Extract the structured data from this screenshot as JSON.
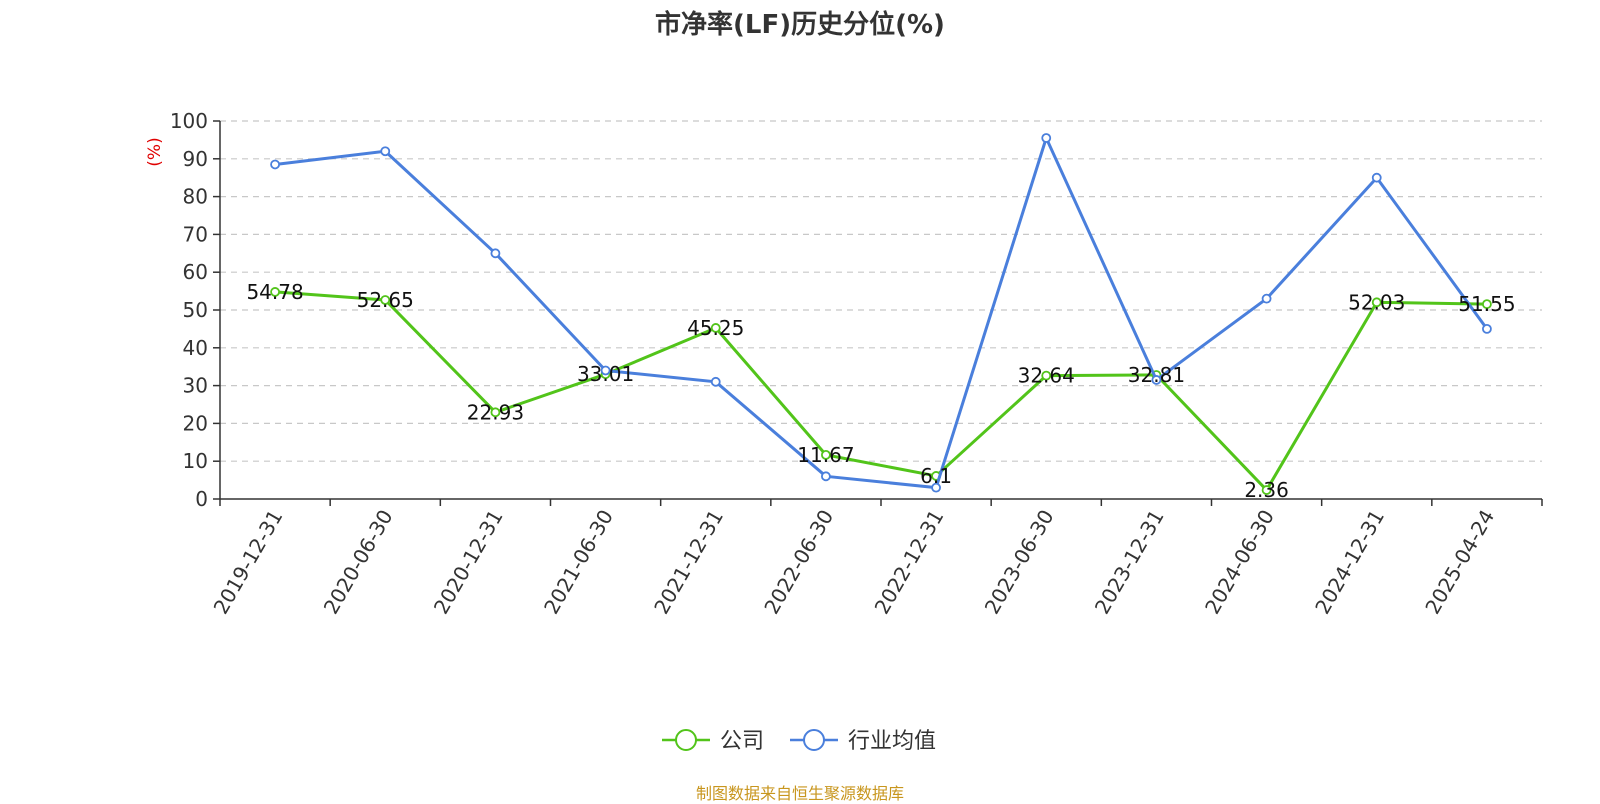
{
  "chart_data": {
    "type": "line",
    "title": "市净率(LF)历史分位(%)",
    "ylabel": "(%)",
    "xlabel": "",
    "ylim": [
      0,
      100
    ],
    "yticks": [
      0,
      10,
      20,
      30,
      40,
      50,
      60,
      70,
      80,
      90,
      100
    ],
    "categories": [
      "2019-12-31",
      "2020-06-30",
      "2020-12-31",
      "2021-06-30",
      "2021-12-31",
      "2022-06-30",
      "2022-12-31",
      "2023-06-30",
      "2023-12-31",
      "2024-06-30",
      "2024-12-31",
      "2025-04-24"
    ],
    "grid": true,
    "legend_position": "bottom",
    "series": [
      {
        "name": "公司",
        "color": "#52c41a",
        "values": [
          54.78,
          52.65,
          22.93,
          33.01,
          45.25,
          11.67,
          6.1,
          32.64,
          32.81,
          2.36,
          52.03,
          51.55
        ],
        "labels": [
          "54.78",
          "52.65",
          "22.93",
          "33.01",
          "45.25",
          "11.67",
          "6.1",
          "32.64",
          "32.81",
          "2.36",
          "52.03",
          "51.55"
        ]
      },
      {
        "name": "行业均值",
        "color": "#4a7fdc",
        "values": [
          88.5,
          92,
          65,
          34,
          31,
          6,
          3,
          95.5,
          31.5,
          53,
          85,
          45
        ]
      }
    ]
  },
  "source_note": "制图数据来自恒生聚源数据库"
}
